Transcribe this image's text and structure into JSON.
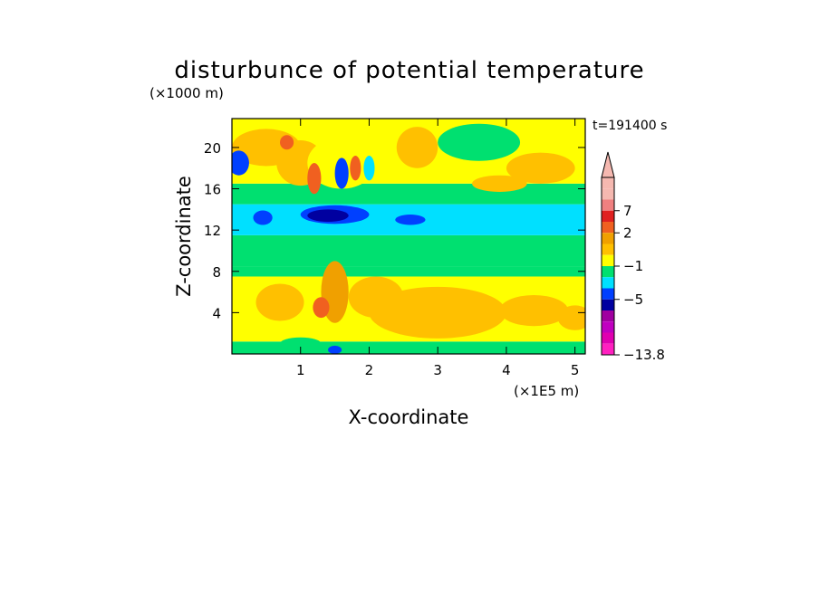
{
  "chart_data": {
    "type": "heatmap",
    "title": "disturbunce of potential temperature",
    "time_label": "t=191400 s",
    "xlabel": "X-coordinate",
    "ylabel": "Z-coordinate",
    "x_unit": "(×1E5 m)",
    "y_unit": "(×1000 m)",
    "xlim": [
      0,
      5.15
    ],
    "ylim": [
      0,
      22.8
    ],
    "x_ticks": [
      1,
      2,
      3,
      4,
      5
    ],
    "y_ticks": [
      4,
      8,
      12,
      16,
      20
    ],
    "x_tick_labels": [
      "1",
      "2",
      "3",
      "4",
      "5"
    ],
    "y_tick_labels": [
      "4",
      "8",
      "12",
      "16",
      "20"
    ],
    "grid": false,
    "colorbar": {
      "labels": [
        "7",
        "2",
        "−1",
        "−5",
        "−13.8"
      ],
      "colors": [
        "#f5b8b0",
        "#f5b8b0",
        "#f08080",
        "#e02020",
        "#f06020",
        "#f0a000",
        "#ffc000",
        "#ffff00",
        "#00e070",
        "#00e0ff",
        "#0040ff",
        "#0000a0",
        "#a000a0",
        "#c000c0",
        "#e000b0",
        "#ff20c0"
      ]
    },
    "level_colors": {
      "-9": "#c000c0",
      "-7": "#0000a0",
      "-5": "#0040ff",
      "-2": "#00e0ff",
      "-1": "#00e070",
      "0.5": "#ffff00",
      "1.5": "#ffc000",
      "3": "#f0a000",
      "5": "#f06020",
      "7": "#e02020"
    },
    "bands": [
      {
        "z": [
          0,
          1.2
        ],
        "value": -1
      },
      {
        "z": [
          1.2,
          7.5
        ],
        "value": 0.5
      },
      {
        "z": [
          7.5,
          8.5
        ],
        "value": -1
      },
      {
        "z": [
          8.5,
          11.5
        ],
        "value": -1
      },
      {
        "z": [
          11.5,
          14.5
        ],
        "value": -2
      },
      {
        "z": [
          14.5,
          16.5
        ],
        "value": -1
      },
      {
        "z": [
          16.5,
          22.8
        ],
        "value": 0.5
      }
    ],
    "blobs": [
      {
        "x": 3.0,
        "z": 4.0,
        "rx": 1.0,
        "rz": 2.5,
        "value": 1.5
      },
      {
        "x": 4.4,
        "z": 4.2,
        "rx": 0.5,
        "rz": 1.5,
        "value": 1.5
      },
      {
        "x": 5.0,
        "z": 3.5,
        "rx": 0.25,
        "rz": 1.2,
        "value": 1.5
      },
      {
        "x": 0.7,
        "z": 5.0,
        "rx": 0.35,
        "rz": 1.8,
        "value": 1.5
      },
      {
        "x": 2.1,
        "z": 5.5,
        "rx": 0.4,
        "rz": 2.0,
        "value": 1.5
      },
      {
        "x": 0.4,
        "z": 9.5,
        "rx": 0.6,
        "rz": 0.8,
        "value": -1
      },
      {
        "x": 0.5,
        "z": 20.0,
        "rx": 0.5,
        "rz": 1.8,
        "value": 1.5
      },
      {
        "x": 1.0,
        "z": 18.5,
        "rx": 0.35,
        "rz": 2.2,
        "value": 1.5
      },
      {
        "x": 2.7,
        "z": 20.0,
        "rx": 0.3,
        "rz": 2.0,
        "value": 1.5
      },
      {
        "x": 4.5,
        "z": 18.0,
        "rx": 0.5,
        "rz": 1.5,
        "value": 1.5
      },
      {
        "x": 3.9,
        "z": 16.5,
        "rx": 0.4,
        "rz": 0.8,
        "value": 1.5
      },
      {
        "x": 3.6,
        "z": 20.5,
        "rx": 0.6,
        "rz": 1.8,
        "value": -1
      },
      {
        "x": 1.6,
        "z": 18.5,
        "rx": 0.5,
        "rz": 2.5,
        "value": 0.5
      },
      {
        "x": 0.1,
        "z": 18.5,
        "rx": 0.15,
        "rz": 1.2,
        "value": -5
      },
      {
        "x": 0.45,
        "z": 13.2,
        "rx": 0.14,
        "rz": 0.7,
        "value": -5
      },
      {
        "x": 1.5,
        "z": 13.5,
        "rx": 0.5,
        "rz": 0.9,
        "value": -5
      },
      {
        "x": 1.4,
        "z": 13.4,
        "rx": 0.3,
        "rz": 0.6,
        "value": -7
      },
      {
        "x": 2.6,
        "z": 13.0,
        "rx": 0.22,
        "rz": 0.5,
        "value": -5
      },
      {
        "x": 1.5,
        "z": 6.0,
        "rx": 0.2,
        "rz": 3.0,
        "value": 3
      },
      {
        "x": 1.3,
        "z": 4.5,
        "rx": 0.12,
        "rz": 1.0,
        "value": 5
      },
      {
        "x": 1.5,
        "z": 0.4,
        "rx": 0.1,
        "rz": 0.4,
        "value": -5
      },
      {
        "x": 1.0,
        "z": 1.0,
        "rx": 0.3,
        "rz": 0.6,
        "value": -1
      },
      {
        "x": 1.2,
        "z": 17.0,
        "rx": 0.1,
        "rz": 1.5,
        "value": 5
      },
      {
        "x": 1.6,
        "z": 17.5,
        "rx": 0.1,
        "rz": 1.5,
        "value": -5
      },
      {
        "x": 1.8,
        "z": 18.0,
        "rx": 0.08,
        "rz": 1.2,
        "value": 5
      },
      {
        "x": 2.0,
        "z": 18.0,
        "rx": 0.08,
        "rz": 1.2,
        "value": -2
      },
      {
        "x": 0.8,
        "z": 20.5,
        "rx": 0.1,
        "rz": 0.7,
        "value": 5
      }
    ]
  }
}
